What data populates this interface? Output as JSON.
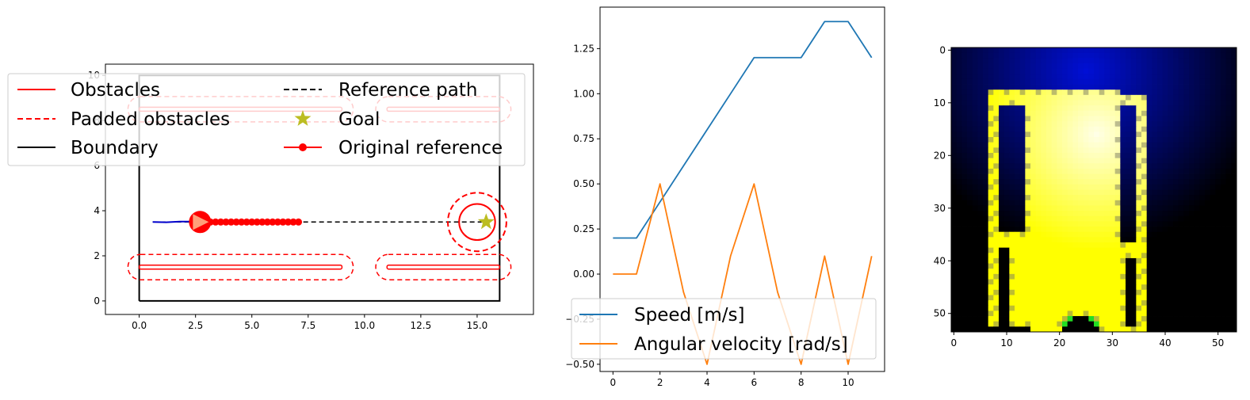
{
  "chart_data": [
    {
      "type": "scatter",
      "xlim": [
        -1.5,
        17.5
      ],
      "ylim": [
        -0.6,
        10.5
      ],
      "x_ticks": [
        "0.0",
        "2.5",
        "5.0",
        "7.5",
        "10.0",
        "12.5",
        "15.0"
      ],
      "y_ticks": [
        "0",
        "2",
        "4",
        "6",
        "8",
        "10"
      ],
      "boundary": [
        [
          0,
          0
        ],
        [
          16,
          0
        ],
        [
          16,
          10
        ],
        [
          0,
          10
        ],
        [
          0,
          0
        ]
      ],
      "obstacles": [
        {
          "x": [
            0,
            9
          ],
          "y": 1.5
        },
        {
          "x": [
            11,
            16
          ],
          "y": 1.5
        },
        {
          "x": [
            0,
            9
          ],
          "y": 8.5
        },
        {
          "x": [
            11,
            16
          ],
          "y": 8.5
        }
      ],
      "reference_path": {
        "x": [
          0.6,
          15.4
        ],
        "y": 3.5
      },
      "original_reference": {
        "x": [
          2.7,
          2.93,
          3.16,
          3.39,
          3.62,
          3.85,
          4.08,
          4.31,
          4.54,
          4.77,
          5.0,
          5.23,
          5.46,
          5.69,
          5.92,
          6.15,
          6.38,
          6.61,
          6.84,
          7.07
        ],
        "y": 3.5
      },
      "goal": {
        "x": 15.4,
        "y": 3.5
      },
      "dynamic_obstacle": {
        "x": 15.0,
        "y": 3.5,
        "radius": 0.8,
        "padded_radius": 1.3
      },
      "robot": {
        "x": 2.7,
        "y": 3.5
      },
      "trajectory": {
        "x": [
          0.6,
          1.2,
          1.8,
          2.4
        ],
        "y": [
          3.5,
          3.49,
          3.52,
          3.52
        ]
      },
      "legend": [
        {
          "label": "Obstacles",
          "style": "solid",
          "color": "#ff0000"
        },
        {
          "label": "Padded obstacles",
          "style": "dashed",
          "color": "#ff0000"
        },
        {
          "label": "Boundary",
          "style": "solid",
          "color": "#000000"
        },
        {
          "label": "Reference path",
          "style": "dashed",
          "color": "#000000"
        },
        {
          "label": "Goal",
          "style": "star",
          "color": "#bcbd22"
        },
        {
          "label": "Original reference",
          "style": "line-dot",
          "color": "#ff0000"
        }
      ],
      "legend_position": "upper-left"
    },
    {
      "type": "line",
      "xlim": [
        -0.55,
        11.55
      ],
      "ylim": [
        -0.54,
        1.48
      ],
      "x_ticks": [
        "0",
        "2",
        "4",
        "6",
        "8",
        "10"
      ],
      "y_ticks": [
        "-0.50",
        "-0.25",
        "0.00",
        "0.25",
        "0.50",
        "0.75",
        "1.00",
        "1.25"
      ],
      "x": [
        0,
        1,
        2,
        3,
        4,
        5,
        6,
        7,
        8,
        9,
        10,
        11
      ],
      "series": [
        {
          "name": "Speed [m/s]",
          "color": "#1f77b4",
          "values": [
            0.2,
            0.2,
            0.4,
            0.6,
            0.8,
            1.0,
            1.2,
            1.2,
            1.2,
            1.4,
            1.4,
            1.2
          ]
        },
        {
          "name": "Angular velocity [rad/s]",
          "color": "#ff7f0e",
          "values": [
            0.0,
            0.0,
            0.5,
            -0.1,
            -0.5,
            0.1,
            0.5,
            -0.1,
            -0.5,
            0.1,
            -0.5,
            0.1
          ]
        }
      ],
      "legend_position": "lower-left"
    },
    {
      "type": "heatmap",
      "rows": 54,
      "cols": 54,
      "x_ticks": [
        "0",
        "10",
        "20",
        "30",
        "40",
        "50"
      ],
      "y_ticks": [
        "0",
        "10",
        "20",
        "30",
        "40",
        "50"
      ],
      "colors": {
        "dark": "#000000",
        "blue": "#0010e0",
        "yellow": "#ffff00",
        "glow": "#ffffe6",
        "green": "#22dd22"
      }
    }
  ]
}
